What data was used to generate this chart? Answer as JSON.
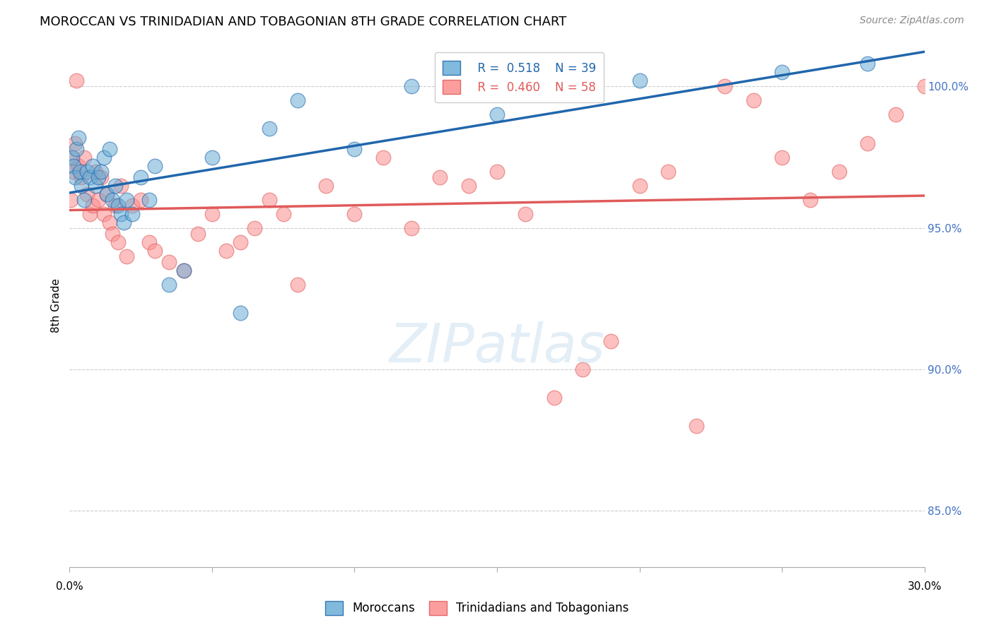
{
  "title": "MOROCCAN VS TRINIDADIAN AND TOBAGONIAN 8TH GRADE CORRELATION CHART",
  "source": "Source: ZipAtlas.com",
  "ylabel": "8th Grade",
  "xmin": 0.0,
  "xmax": 30.0,
  "ymin": 83.0,
  "ymax": 101.5,
  "blue_R": 0.518,
  "blue_N": 39,
  "pink_R": 0.46,
  "pink_N": 58,
  "blue_color": "#6baed6",
  "pink_color": "#fc8d8d",
  "blue_line_color": "#2166ac",
  "pink_line_color": "#e05a5a",
  "right_tick_color": "#4472c4",
  "legend_label_blue": "Moroccans",
  "legend_label_pink": "Trinidadians and Tobagonians",
  "yticks": [
    85.0,
    90.0,
    95.0,
    100.0
  ],
  "blue_scatter_x": [
    0.1,
    0.15,
    0.2,
    0.25,
    0.3,
    0.35,
    0.4,
    0.5,
    0.6,
    0.7,
    0.8,
    0.9,
    1.0,
    1.1,
    1.2,
    1.3,
    1.4,
    1.5,
    1.6,
    1.7,
    1.8,
    1.9,
    2.0,
    2.2,
    2.5,
    2.8,
    3.0,
    3.5,
    4.0,
    5.0,
    6.0,
    7.0,
    8.0,
    10.0,
    12.0,
    15.0,
    20.0,
    25.0,
    28.0
  ],
  "blue_scatter_y": [
    97.5,
    97.2,
    96.8,
    97.8,
    98.2,
    97.0,
    96.5,
    96.0,
    97.0,
    96.8,
    97.2,
    96.5,
    96.8,
    97.0,
    97.5,
    96.2,
    97.8,
    96.0,
    96.5,
    95.8,
    95.5,
    95.2,
    96.0,
    95.5,
    96.8,
    96.0,
    97.2,
    93.0,
    93.5,
    97.5,
    92.0,
    98.5,
    99.5,
    97.8,
    100.0,
    99.0,
    100.2,
    100.5,
    100.8
  ],
  "pink_scatter_x": [
    0.05,
    0.1,
    0.15,
    0.2,
    0.25,
    0.3,
    0.4,
    0.5,
    0.6,
    0.7,
    0.8,
    0.9,
    1.0,
    1.1,
    1.2,
    1.3,
    1.4,
    1.5,
    1.6,
    1.7,
    1.8,
    2.0,
    2.2,
    2.5,
    2.8,
    3.0,
    3.5,
    4.0,
    4.5,
    5.0,
    5.5,
    6.0,
    6.5,
    7.0,
    7.5,
    8.0,
    9.0,
    10.0,
    11.0,
    12.0,
    13.0,
    14.0,
    15.0,
    16.0,
    17.0,
    18.0,
    19.0,
    20.0,
    21.0,
    22.0,
    23.0,
    24.0,
    25.0,
    26.0,
    27.0,
    28.0,
    29.0,
    30.0
  ],
  "pink_scatter_y": [
    96.0,
    97.5,
    97.0,
    98.0,
    100.2,
    97.2,
    96.8,
    97.5,
    96.2,
    95.5,
    95.8,
    97.0,
    96.0,
    96.8,
    95.5,
    96.2,
    95.2,
    94.8,
    95.8,
    94.5,
    96.5,
    94.0,
    95.8,
    96.0,
    94.5,
    94.2,
    93.8,
    93.5,
    94.8,
    95.5,
    94.2,
    94.5,
    95.0,
    96.0,
    95.5,
    93.0,
    96.5,
    95.5,
    97.5,
    95.0,
    96.8,
    96.5,
    97.0,
    95.5,
    89.0,
    90.0,
    91.0,
    96.5,
    97.0,
    88.0,
    100.0,
    99.5,
    97.5,
    96.0,
    97.0,
    98.0,
    99.0,
    100.0
  ]
}
